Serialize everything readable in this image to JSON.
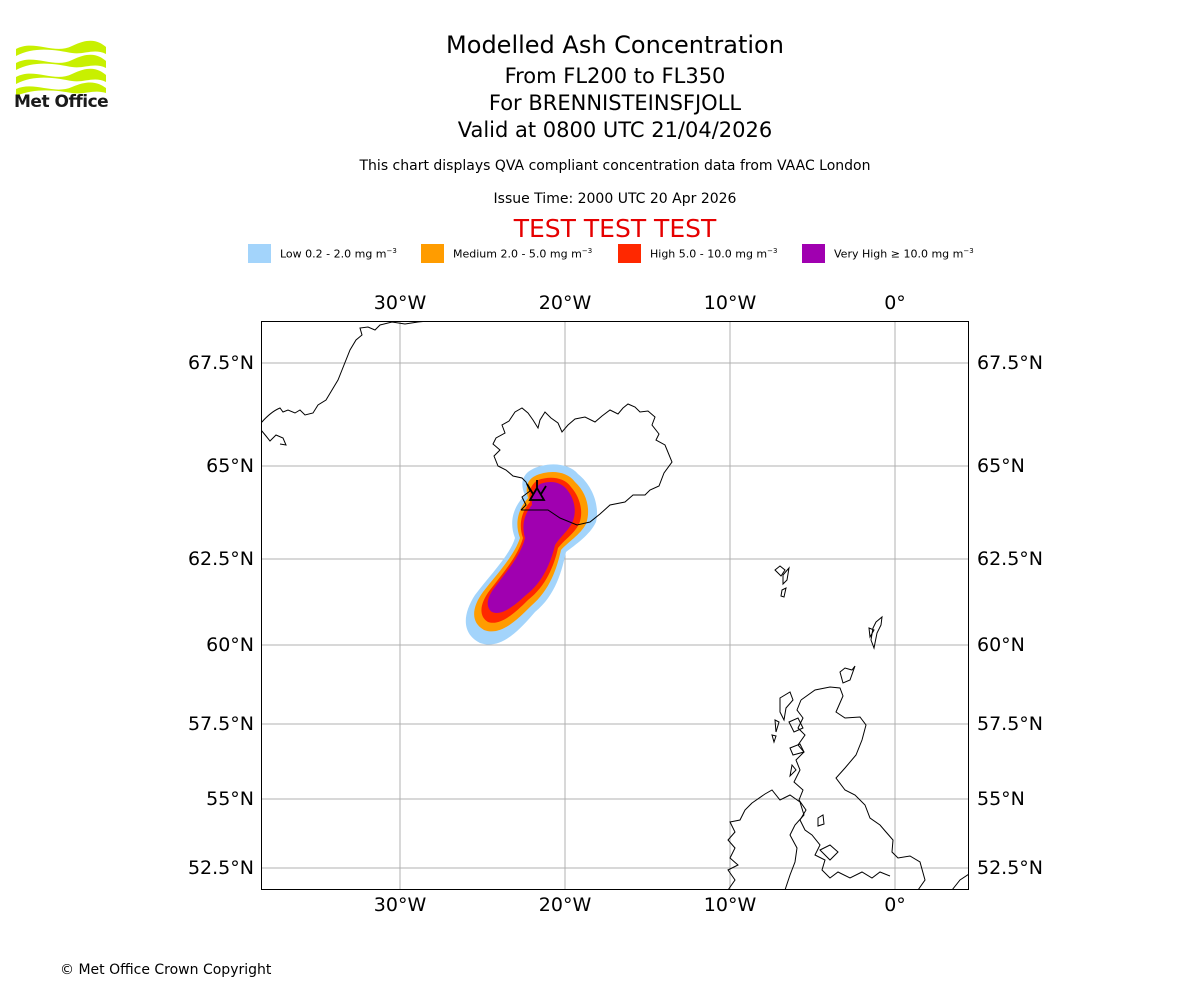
{
  "brand": {
    "name": "Met Office"
  },
  "header": {
    "title": "Modelled Ash Concentration",
    "line1": "From FL200 to FL350",
    "line2": "For BRENNISTEINSFJOLL",
    "line3": "Valid at 0800 UTC 21/04/2026",
    "description": "This chart displays QVA compliant concentration data from VAAC London",
    "issue_time": "Issue Time: 2000 UTC 20 Apr 2026",
    "test_banner": "TEST TEST TEST"
  },
  "legend": [
    {
      "label": "Low 0.2 - 2.0 mg m",
      "sup": "−3",
      "color": "#a3d4fb"
    },
    {
      "label": "Medium 2.0 - 5.0 mg m",
      "sup": "−3",
      "color": "#ff9c00"
    },
    {
      "label": "High 5.0 - 10.0 mg m",
      "sup": "−3",
      "color": "#ff2800"
    },
    {
      "label": "Very High  ≥  10.0 mg m",
      "sup": "−3",
      "color": "#a000b0"
    }
  ],
  "map": {
    "lon_ticks": [
      "30°W",
      "20°W",
      "10°W",
      "0°"
    ],
    "lat_ticks": [
      "67.5°N",
      "65°N",
      "62.5°N",
      "60°N",
      "57.5°N",
      "55°N",
      "52.5°N"
    ],
    "extent": {
      "lon": [
        -38.4,
        4.4
      ],
      "lat": [
        51.7,
        68.6
      ]
    },
    "volcano": "BRENNISTEINSFJOLL",
    "plume_levels": [
      "Low",
      "Medium",
      "High",
      "Very High"
    ]
  },
  "footer": {
    "copyright": "© Met Office Crown Copyright"
  }
}
